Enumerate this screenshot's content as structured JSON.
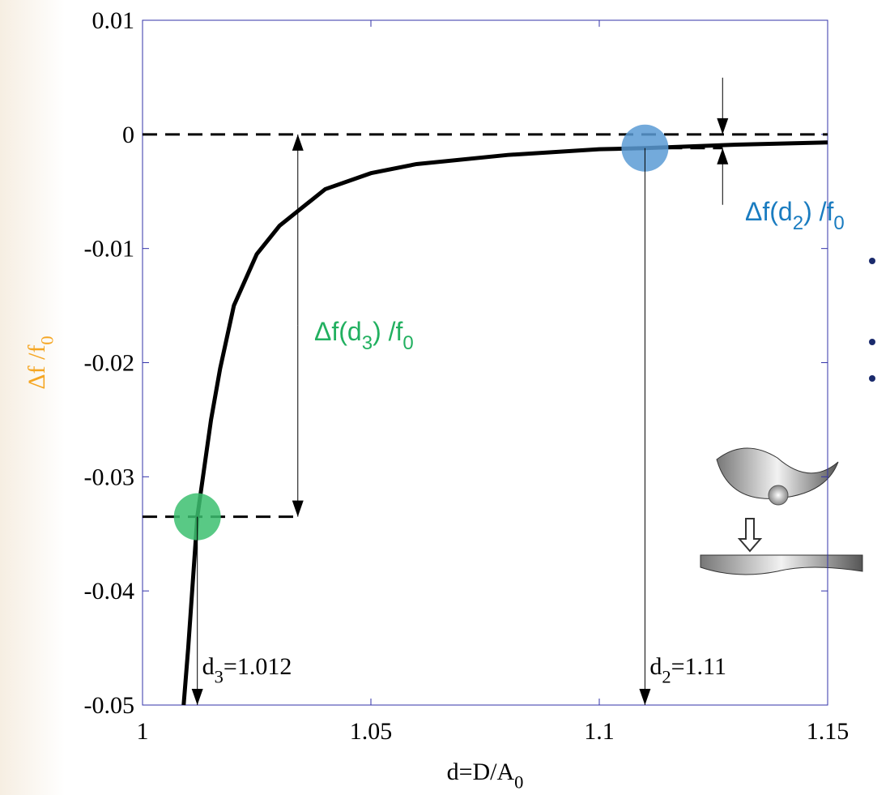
{
  "chart_data": {
    "type": "line",
    "xlabel": [
      "d=D/A",
      "0"
    ],
    "ylabel": [
      "Δf /f",
      "0"
    ],
    "x": [
      1.009,
      1.01,
      1.012,
      1.015,
      1.017,
      1.02,
      1.025,
      1.03,
      1.04,
      1.05,
      1.06,
      1.08,
      1.1,
      1.11,
      1.13,
      1.15
    ],
    "series": [
      {
        "color": "#000000",
        "values": [
          -0.05,
          -0.045,
          -0.0335,
          -0.025,
          -0.0205,
          -0.015,
          -0.0105,
          -0.008,
          -0.0048,
          -0.0034,
          -0.0026,
          -0.0018,
          -0.0013,
          -0.0012,
          -0.0009,
          -0.0007
        ]
      }
    ],
    "xlim": [
      1,
      1.15
    ],
    "xticks": [
      1,
      1.05,
      1.1,
      1.15
    ],
    "ylim": [
      -0.05,
      0.01
    ],
    "yticks": [
      0.01,
      0,
      -0.01,
      -0.02,
      -0.03,
      -0.04,
      -0.05
    ],
    "markers": [
      {
        "x": 1.012,
        "y": -0.0335,
        "color": "#3cbf70",
        "label": [
          "d",
          "3",
          "=1.012"
        ],
        "delta_label": [
          "Δf(d",
          "3",
          ") /f",
          "0"
        ],
        "label_color": "#22b060"
      },
      {
        "x": 1.11,
        "y": -0.0012,
        "color": "#5b9bd5",
        "label": [
          "d",
          "2",
          "=1.11"
        ],
        "delta_label": [
          "Δf(d",
          "2",
          ") /f",
          "0"
        ],
        "label_color": "#1a7cc0"
      }
    ]
  }
}
